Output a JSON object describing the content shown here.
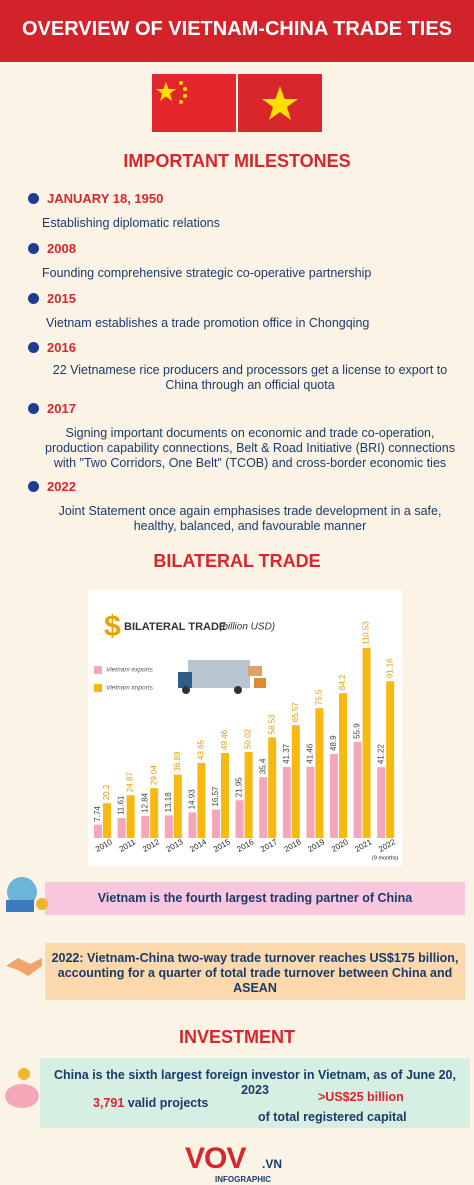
{
  "header": {
    "title": "OVERVIEW OF VIETNAM-CHINA TRADE TIES"
  },
  "milestones": {
    "title": "IMPORTANT MILESTONES",
    "items": [
      {
        "date": "JANUARY 18, 1950",
        "text": "Establishing diplomatic relations"
      },
      {
        "date": "2008",
        "text": "Founding comprehensive strategic co-operative partnership"
      },
      {
        "date": "2015",
        "text": "Vietnam establishes a trade promotion office in Chongqing"
      },
      {
        "date": "2016",
        "text": "22 Vietnamese rice producers and processors get a license to export to China through an official quota"
      },
      {
        "date": "2017",
        "text": "Signing important documents on economic and trade co-operation, production capability connections, Belt & Road Initiative (BRI) connections with \"Two Corridors, One Belt\" (TCOB) and cross-border economic ties"
      },
      {
        "date": "2022",
        "text": "Joint Statement once again emphasises trade development in a safe, healthy, balanced, and favourable manner"
      }
    ]
  },
  "bilateral": {
    "title": "BILATERAL TRADE"
  },
  "chart_data": {
    "type": "bar",
    "title": "BILATERAL TRADE",
    "subtitle": "(billion USD)",
    "categories": [
      "2010",
      "2011",
      "2012",
      "2013",
      "2014",
      "2015",
      "2016",
      "2017",
      "2018",
      "2019",
      "2020",
      "2021",
      "2022"
    ],
    "annotation": "(9 months)",
    "series": [
      {
        "name": "Vietnam exports",
        "color": "#f4a7bb",
        "values": [
          7.74,
          11.61,
          12.84,
          13.18,
          14.93,
          16.57,
          21.95,
          35.4,
          41.37,
          41.46,
          48.9,
          55.9,
          41.22
        ]
      },
      {
        "name": "Vietnam imports",
        "color": "#f6b90f",
        "values": [
          20.2,
          24.87,
          29.04,
          36.89,
          43.65,
          49.46,
          50.02,
          58.53,
          65.57,
          75.5,
          84.2,
          110.53,
          91.16
        ]
      }
    ]
  },
  "partner": {
    "text": "Vietnam is the fourth largest trading partner of China"
  },
  "turnover": {
    "text": "2022: Vietnam-China two-way trade turnover reaches US$175 billion, accounting for a quarter of total trade turnover between China and ASEAN"
  },
  "investment": {
    "title": "INVESTMENT",
    "text": "China is the sixth largest foreign investor in Vietnam, as of June 20, 2023",
    "projects_number": "3,791",
    "projects_label": "valid projects",
    "capital_number": ">US$25 billion",
    "capital_label": "of total registered capital"
  },
  "footer": {
    "logo": "VOV",
    "domain": ".VN",
    "caption": "INFOGRAPHIC"
  }
}
